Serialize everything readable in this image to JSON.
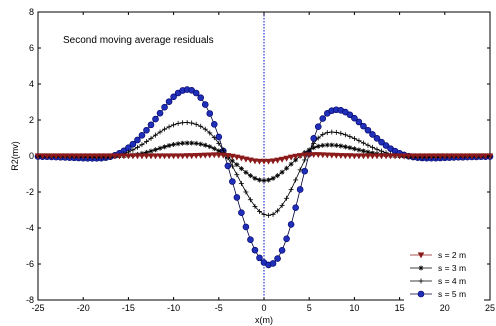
{
  "chart_data": {
    "type": "line",
    "title": "Second moving average residuals",
    "xlabel": "x(m)",
    "ylabel": "R2(mv)",
    "xlim": [
      -25,
      25
    ],
    "ylim": [
      -8,
      8
    ],
    "xticks": [
      -25,
      -20,
      -15,
      -10,
      -5,
      0,
      5,
      10,
      15,
      20,
      25
    ],
    "yticks": [
      -8,
      -6,
      -4,
      -2,
      0,
      2,
      4,
      6,
      8
    ],
    "grid": false,
    "legend_position": "bottom-right",
    "vertical_reference_line": {
      "x": 0,
      "style": "dotted",
      "color": "#0000cc"
    },
    "x": [
      -25,
      -24.5,
      -24,
      -23.5,
      -23,
      -22.5,
      -22,
      -21.5,
      -21,
      -20.5,
      -20,
      -19.5,
      -19,
      -18.5,
      -18,
      -17.5,
      -17,
      -16.5,
      -16,
      -15.5,
      -15,
      -14.5,
      -14,
      -13.5,
      -13,
      -12.5,
      -12,
      -11.5,
      -11,
      -10.5,
      -10,
      -9.5,
      -9,
      -8.5,
      -8,
      -7.5,
      -7,
      -6.5,
      -6,
      -5.5,
      -5,
      -4.5,
      -4,
      -3.5,
      -3,
      -2.5,
      -2,
      -1.5,
      -1,
      -0.5,
      0,
      0.5,
      1,
      1.5,
      2,
      2.5,
      3,
      3.5,
      4,
      4.5,
      5,
      5.5,
      6,
      6.5,
      7,
      7.5,
      8,
      8.5,
      9,
      9.5,
      10,
      10.5,
      11,
      11.5,
      12,
      12.5,
      13,
      13.5,
      14,
      14.5,
      15,
      15.5,
      16,
      16.5,
      17,
      17.5,
      18,
      18.5,
      19,
      19.5,
      20,
      20.5,
      21,
      21.5,
      22,
      22.5,
      23,
      23.5,
      24,
      24.5,
      25
    ],
    "series": [
      {
        "name": "s = 2 m",
        "marker": "triangle-down",
        "color": "#8b1a1a",
        "values": [
          0,
          0,
          0,
          0,
          0,
          0,
          0,
          0,
          0,
          0,
          0,
          0,
          0,
          0,
          0,
          0,
          0,
          0,
          0,
          0,
          0,
          0,
          0,
          0,
          0,
          0,
          0,
          0,
          0,
          0,
          0,
          0,
          0,
          0.01,
          0.01,
          0.02,
          0.03,
          0.04,
          0.05,
          0.06,
          0.05,
          0.04,
          0.02,
          -0.02,
          -0.07,
          -0.12,
          -0.18,
          -0.23,
          -0.28,
          -0.3,
          -0.3,
          -0.3,
          -0.28,
          -0.24,
          -0.19,
          -0.13,
          -0.07,
          -0.02,
          0.02,
          0.05,
          0.06,
          0.07,
          0.07,
          0.06,
          0.05,
          0.04,
          0.03,
          0.02,
          0.01,
          0.01,
          0,
          0,
          0,
          0,
          0,
          0,
          0,
          0,
          0,
          0,
          0,
          0,
          0,
          0,
          0,
          0,
          0,
          0,
          0,
          0,
          0,
          0,
          0,
          0,
          0,
          0,
          0,
          0,
          0,
          0,
          0
        ]
      },
      {
        "name": "s = 3 m",
        "marker": "star",
        "color": "#000000",
        "values": [
          -0.01,
          -0.01,
          -0.01,
          -0.01,
          -0.01,
          -0.01,
          -0.01,
          -0.02,
          -0.02,
          -0.02,
          -0.02,
          -0.02,
          -0.03,
          -0.03,
          -0.03,
          -0.03,
          -0.03,
          -0.02,
          -0.01,
          0,
          0.02,
          0.05,
          0.09,
          0.14,
          0.2,
          0.27,
          0.35,
          0.43,
          0.51,
          0.58,
          0.64,
          0.68,
          0.71,
          0.72,
          0.72,
          0.7,
          0.66,
          0.6,
          0.52,
          0.41,
          0.28,
          0.12,
          -0.06,
          -0.27,
          -0.48,
          -0.7,
          -0.91,
          -1.09,
          -1.24,
          -1.33,
          -1.36,
          -1.33,
          -1.24,
          -1.09,
          -0.9,
          -0.68,
          -0.45,
          -0.22,
          0,
          0.19,
          0.34,
          0.46,
          0.54,
          0.59,
          0.61,
          0.61,
          0.59,
          0.56,
          0.51,
          0.46,
          0.4,
          0.34,
          0.28,
          0.22,
          0.17,
          0.12,
          0.08,
          0.05,
          0.02,
          0,
          -0.01,
          -0.02,
          -0.03,
          -0.03,
          -0.03,
          -0.03,
          -0.03,
          -0.02,
          -0.02,
          -0.02,
          -0.02,
          -0.02,
          -0.01,
          -0.01,
          -0.01,
          -0.01,
          -0.01,
          -0.01,
          -0.01,
          -0.01,
          -0.01
        ]
      },
      {
        "name": "s = 4 m",
        "marker": "plus",
        "color": "#000000",
        "values": [
          -0.02,
          -0.02,
          -0.03,
          -0.03,
          -0.03,
          -0.04,
          -0.04,
          -0.05,
          -0.05,
          -0.06,
          -0.07,
          -0.08,
          -0.08,
          -0.09,
          -0.09,
          -0.08,
          -0.06,
          -0.02,
          0.04,
          0.12,
          0.22,
          0.34,
          0.48,
          0.63,
          0.8,
          0.98,
          1.16,
          1.33,
          1.49,
          1.62,
          1.73,
          1.81,
          1.85,
          1.86,
          1.83,
          1.76,
          1.65,
          1.49,
          1.28,
          1.02,
          0.7,
          0.32,
          -0.1,
          -0.56,
          -1.04,
          -1.53,
          -2.0,
          -2.43,
          -2.8,
          -3.08,
          -3.25,
          -3.3,
          -3.24,
          -3.05,
          -2.75,
          -2.35,
          -1.87,
          -1.33,
          -0.77,
          -0.22,
          0.28,
          0.7,
          1.0,
          1.2,
          1.3,
          1.33,
          1.31,
          1.26,
          1.18,
          1.08,
          0.97,
          0.85,
          0.72,
          0.6,
          0.48,
          0.37,
          0.27,
          0.18,
          0.11,
          0.05,
          0,
          -0.04,
          -0.06,
          -0.08,
          -0.09,
          -0.09,
          -0.09,
          -0.08,
          -0.08,
          -0.07,
          -0.06,
          -0.05,
          -0.05,
          -0.04,
          -0.04,
          -0.03,
          -0.03,
          -0.03,
          -0.02,
          -0.02,
          -0.02
        ]
      },
      {
        "name": "s = 5 m",
        "marker": "circle",
        "color": "#1f2fb8",
        "values": [
          -0.03,
          -0.04,
          -0.04,
          -0.05,
          -0.06,
          -0.07,
          -0.08,
          -0.09,
          -0.1,
          -0.11,
          -0.12,
          -0.13,
          -0.13,
          -0.13,
          -0.12,
          -0.09,
          -0.04,
          0.04,
          0.15,
          0.29,
          0.46,
          0.66,
          0.89,
          1.15,
          1.43,
          1.73,
          2.05,
          2.38,
          2.71,
          3.02,
          3.29,
          3.5,
          3.64,
          3.69,
          3.65,
          3.5,
          3.24,
          2.86,
          2.36,
          1.76,
          1.06,
          0.28,
          -0.55,
          -1.42,
          -2.3,
          -3.15,
          -3.94,
          -4.65,
          -5.23,
          -5.66,
          -5.92,
          -6.05,
          -5.97,
          -5.7,
          -5.24,
          -4.6,
          -3.8,
          -2.87,
          -1.86,
          -0.84,
          0.13,
          0.98,
          1.63,
          2.08,
          2.37,
          2.52,
          2.57,
          2.54,
          2.44,
          2.29,
          2.1,
          1.89,
          1.66,
          1.43,
          1.2,
          0.98,
          0.77,
          0.58,
          0.41,
          0.27,
          0.15,
          0.06,
          -0.01,
          -0.06,
          -0.09,
          -0.11,
          -0.12,
          -0.12,
          -0.12,
          -0.11,
          -0.1,
          -0.09,
          -0.08,
          -0.07,
          -0.07,
          -0.06,
          -0.05,
          -0.05,
          -0.04,
          -0.04,
          -0.03
        ]
      }
    ]
  }
}
